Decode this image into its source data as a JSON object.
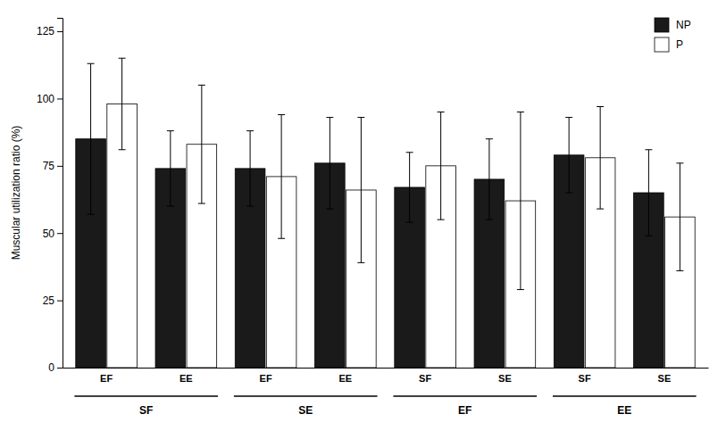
{
  "chart_data": {
    "type": "bar",
    "categories": [
      "EF",
      "EE",
      "EF",
      "EE",
      "SF",
      "SE",
      "SF",
      "SE"
    ],
    "category_groups": [
      "SF",
      "SE",
      "EF",
      "EE"
    ],
    "series": [
      {
        "name": "NP",
        "color": "#1a1a1a",
        "values": [
          85,
          74,
          74,
          76,
          67,
          70,
          79,
          65
        ],
        "errors": [
          28,
          14,
          14,
          17,
          13,
          15,
          14,
          16
        ]
      },
      {
        "name": "P",
        "color": "#ffffff",
        "values": [
          98,
          83,
          71,
          66,
          75,
          62,
          78,
          56
        ],
        "errors": [
          17,
          22,
          23,
          27,
          20,
          33,
          19,
          20
        ]
      }
    ],
    "ylabel": "Muscular utilization ratio (%)",
    "ylim": [
      0,
      130
    ],
    "yticks": [
      0,
      25,
      50,
      75,
      100,
      125
    ],
    "grid": false,
    "legend": "upper right"
  }
}
